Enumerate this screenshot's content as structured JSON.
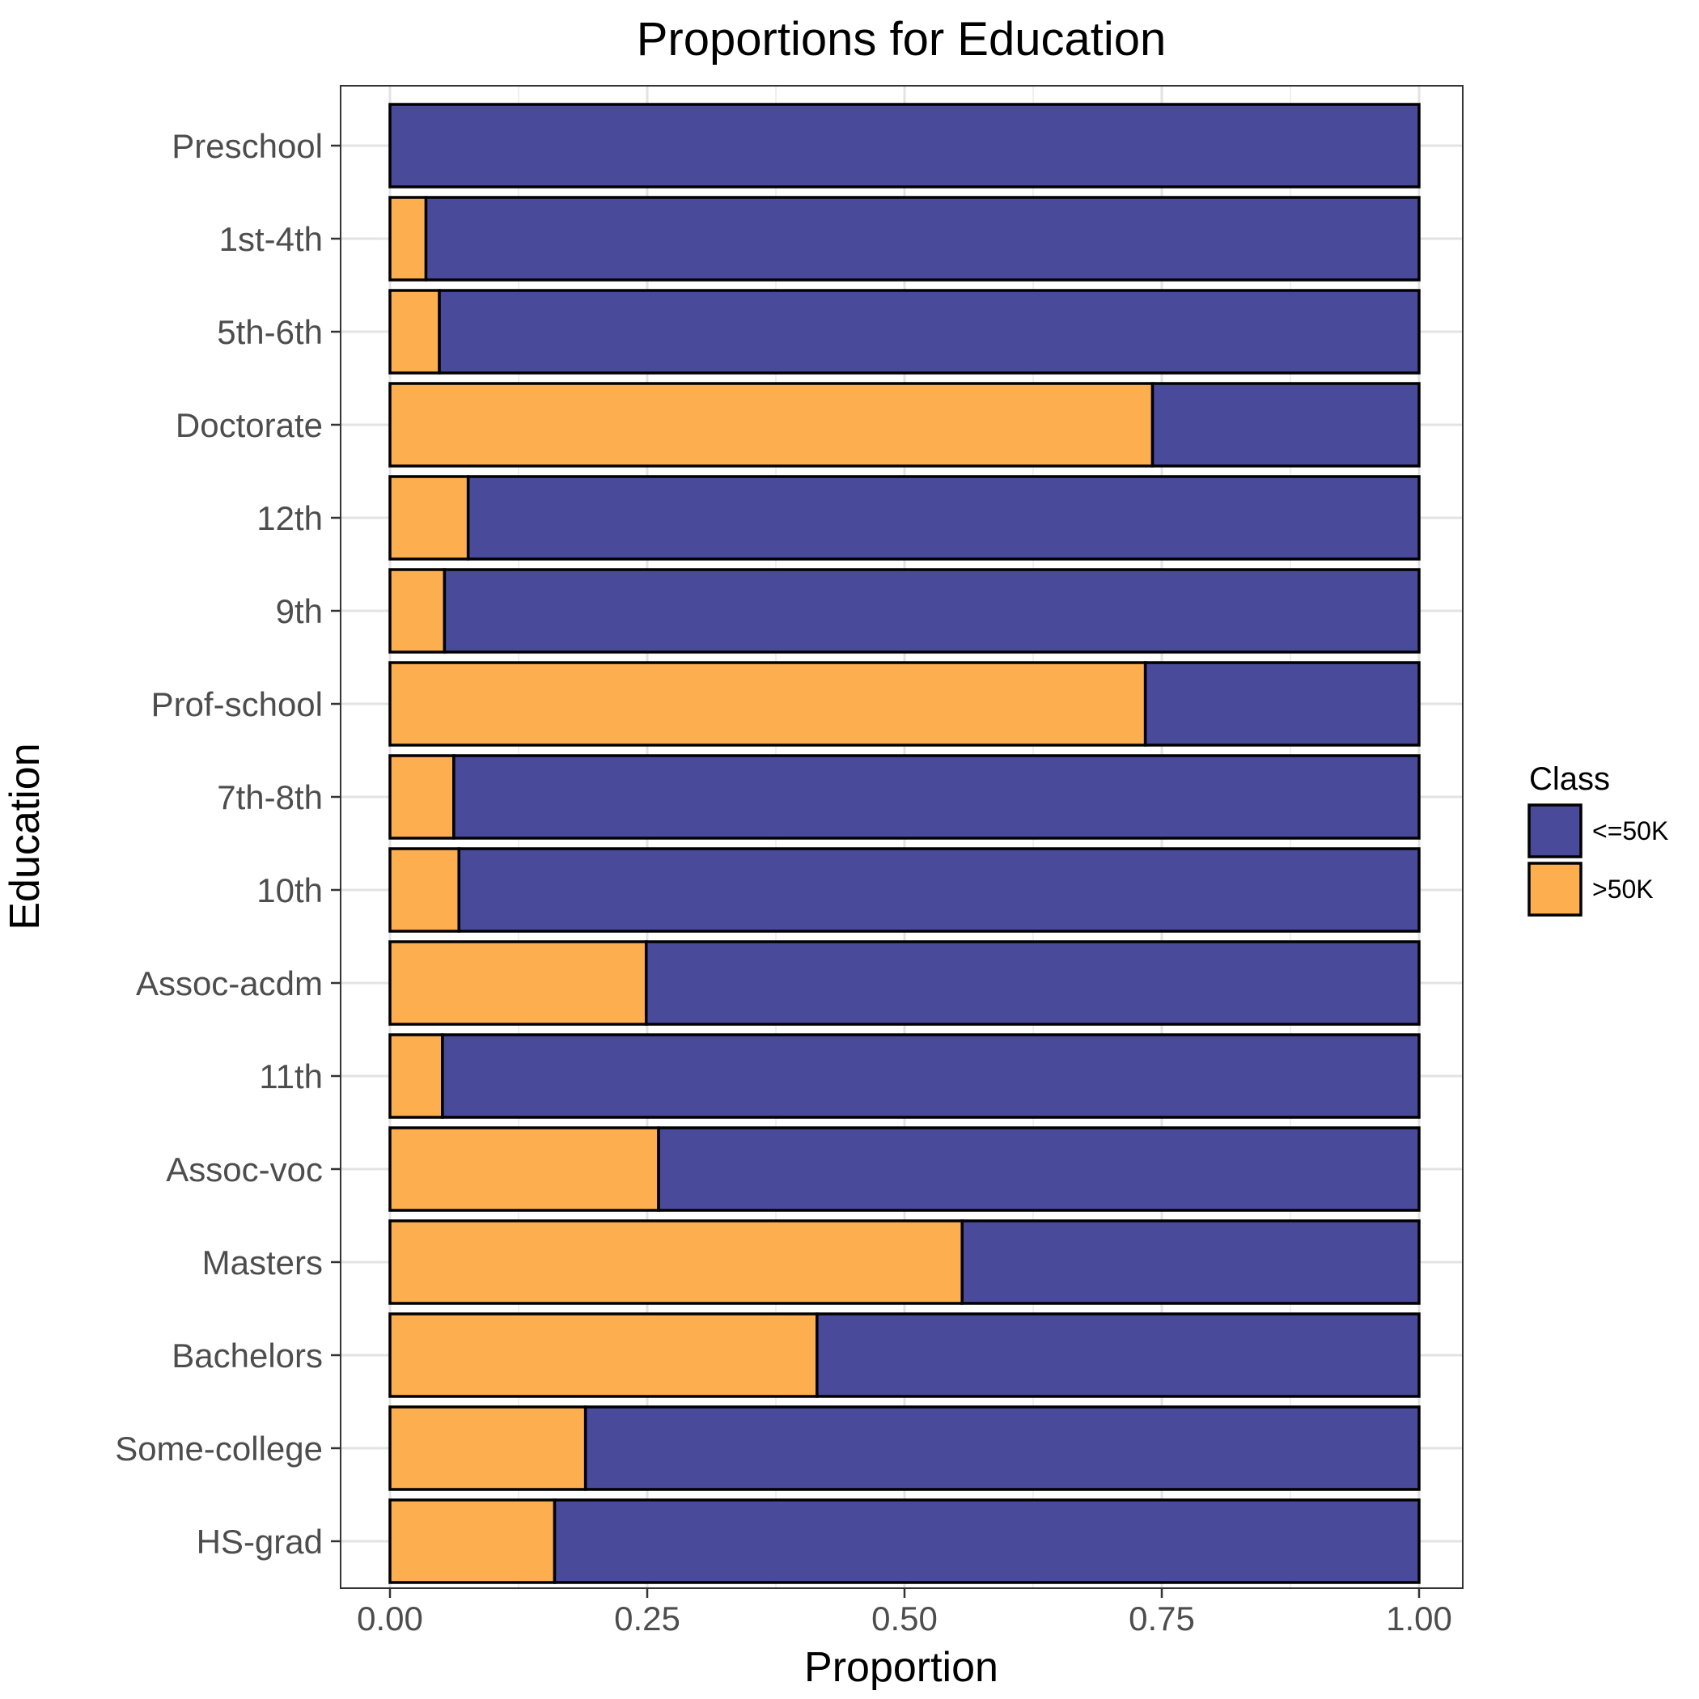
{
  "chart_data": {
    "type": "bar",
    "orientation": "horizontal",
    "stacked": true,
    "title": "Proportions for Education",
    "xlabel": "Proportion",
    "ylabel": "Education",
    "xlim": [
      0,
      1
    ],
    "x_ticks": [
      "0.00",
      "0.25",
      "0.50",
      "0.75",
      "1.00"
    ],
    "x_tick_values": [
      0,
      0.25,
      0.5,
      0.75,
      1.0
    ],
    "grid": true,
    "legend": {
      "title": "Class",
      "position": "right",
      "entries": [
        "<=50K",
        ">50K"
      ]
    },
    "categories": [
      "Preschool",
      "1st-4th",
      "5th-6th",
      "Doctorate",
      "12th",
      "9th",
      "Prof-school",
      "7th-8th",
      "10th",
      "Assoc-acdm",
      "11th",
      "Assoc-voc",
      "Masters",
      "Bachelors",
      "Some-college",
      "HS-grad"
    ],
    "series": [
      {
        "name": ">50K",
        "color": "#FDAE4F",
        "values": [
          0.0,
          0.035,
          0.048,
          0.741,
          0.076,
          0.053,
          0.734,
          0.062,
          0.067,
          0.249,
          0.051,
          0.261,
          0.556,
          0.415,
          0.19,
          0.16
        ]
      },
      {
        "name": "<=50K",
        "color": "#4A4A9B",
        "values": [
          1.0,
          0.965,
          0.952,
          0.259,
          0.924,
          0.947,
          0.266,
          0.938,
          0.933,
          0.751,
          0.949,
          0.739,
          0.444,
          0.585,
          0.81,
          0.84
        ]
      }
    ]
  }
}
